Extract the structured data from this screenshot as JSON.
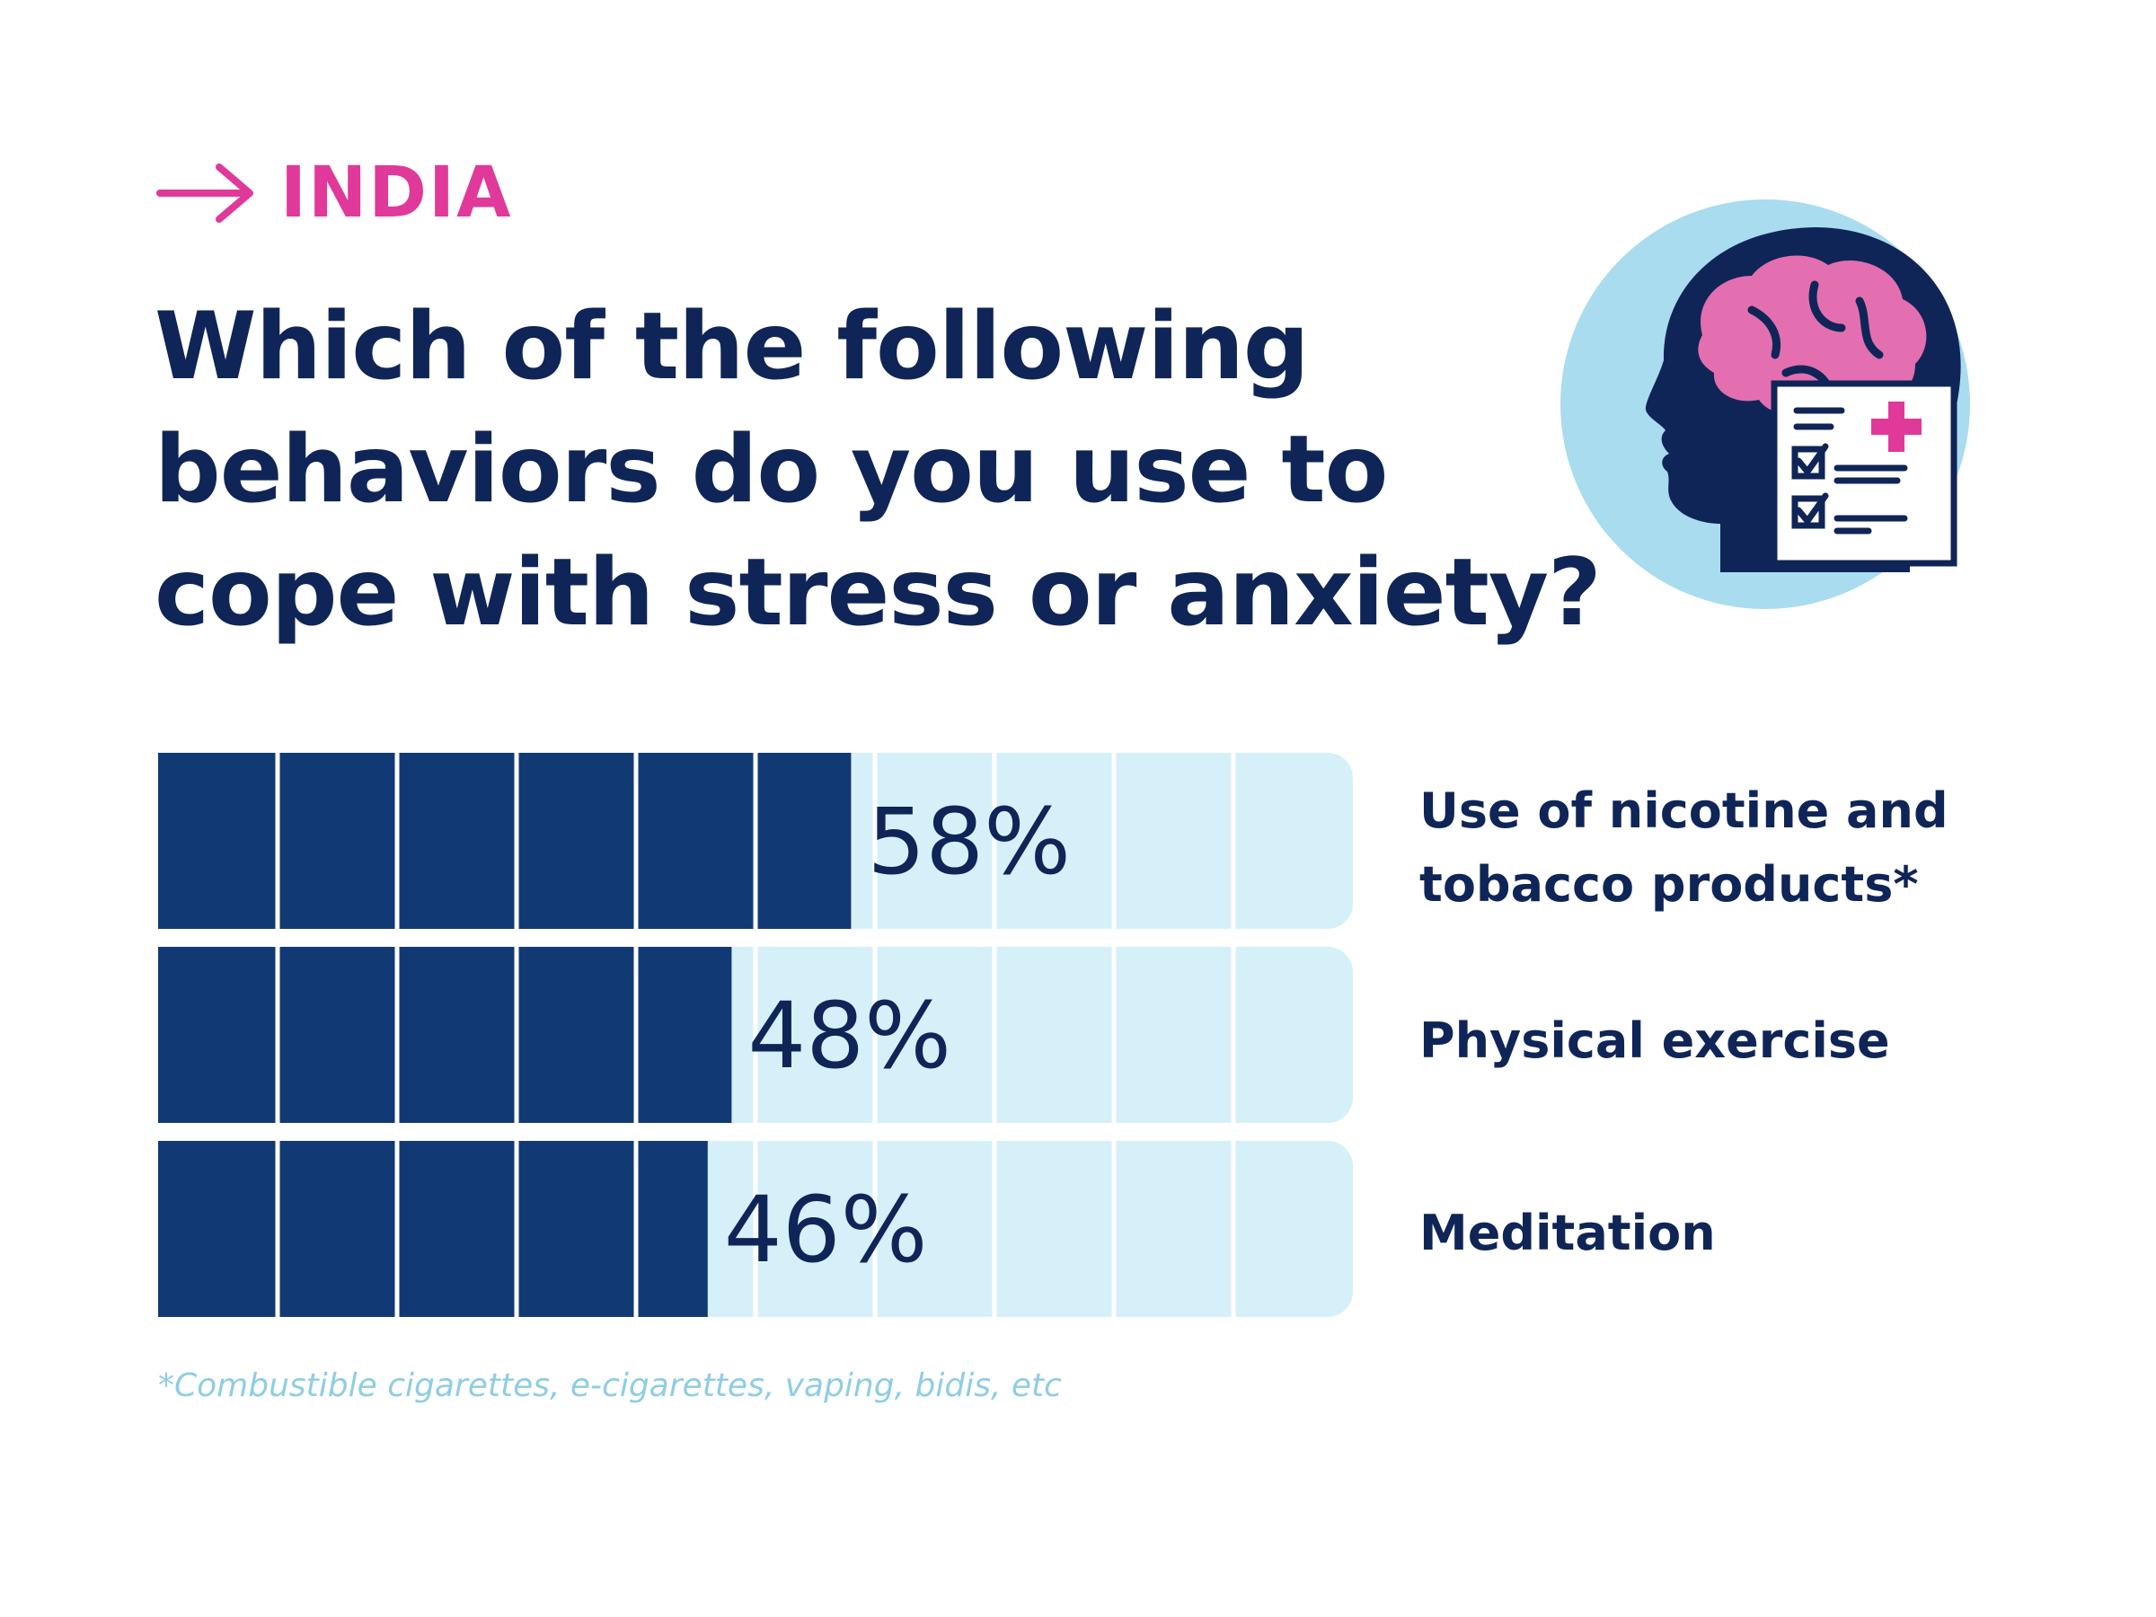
{
  "header": {
    "kicker": "INDIA",
    "title": "Which of the following behaviors do you use to cope with stress or anxiety?"
  },
  "footnote": "*Combustible cigarettes, e-cigarettes, vaping, bidis, etc",
  "colors": {
    "accent": "#e0399a",
    "text": "#0f2557",
    "bar_fill": "#113a75",
    "bar_track": "#d6f0f9",
    "footnote": "#8fcde4"
  },
  "icons": [
    "arrow-right-icon",
    "head-brain-checklist-icon"
  ],
  "chart_data": {
    "type": "bar",
    "orientation": "horizontal",
    "unit": "%",
    "segments": 10,
    "xlim": [
      0,
      100
    ],
    "categories": [
      "Use of nicotine and tobacco products*",
      "Physical exercise",
      "Meditation"
    ],
    "values": [
      58,
      48,
      46
    ],
    "value_labels": [
      "58%",
      "48%",
      "46%"
    ]
  }
}
